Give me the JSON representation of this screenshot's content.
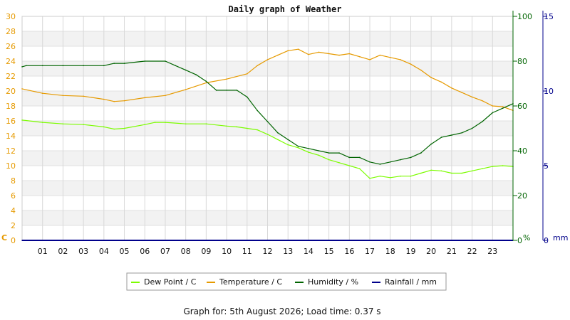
{
  "chart_data": {
    "type": "line",
    "title": "Daily graph of Weather",
    "footer": "Graph for: 5th August 2026; Load time: 0.37 s",
    "x_range": [
      0,
      24
    ],
    "x_ticks": [
      "01",
      "02",
      "03",
      "04",
      "05",
      "06",
      "07",
      "08",
      "09",
      "10",
      "11",
      "12",
      "13",
      "14",
      "15",
      "16",
      "17",
      "18",
      "19",
      "20",
      "21",
      "22",
      "23"
    ],
    "grid": true,
    "legend_position": "bottom",
    "axes": {
      "left": {
        "unit": "C",
        "min": 0,
        "max": 30,
        "step": 2,
        "color": "#e69a00"
      },
      "right1": {
        "unit": "%",
        "min": 0,
        "max": 100,
        "labels": [
          0,
          20,
          40,
          60,
          80,
          100
        ],
        "color": "#006400"
      },
      "right2": {
        "unit": "mm",
        "min": 0,
        "max": 15,
        "labels": [
          0,
          5,
          10,
          15
        ],
        "color": "#00008b"
      }
    },
    "series": [
      {
        "name": "Dew Point / C",
        "axis": "left",
        "color": "#7cfc00",
        "x": [
          0,
          1,
          2,
          3,
          4,
          4.5,
          5,
          6,
          6.5,
          7,
          8,
          9,
          10,
          10.5,
          11,
          11.5,
          12,
          12.5,
          13,
          13.5,
          14,
          14.5,
          15,
          15.5,
          16,
          16.5,
          17,
          17.5,
          18,
          18.5,
          19,
          19.5,
          20,
          20.5,
          21,
          21.5,
          22,
          22.5,
          23,
          23.5,
          24
        ],
        "values": [
          16.1,
          15.8,
          15.6,
          15.5,
          15.2,
          14.9,
          15.0,
          15.5,
          15.8,
          15.8,
          15.6,
          15.6,
          15.3,
          15.2,
          15.0,
          14.8,
          14.2,
          13.5,
          12.8,
          12.4,
          11.8,
          11.4,
          10.8,
          10.4,
          10.0,
          9.6,
          8.3,
          8.6,
          8.4,
          8.6,
          8.6,
          9.0,
          9.4,
          9.3,
          9.0,
          9.0,
          9.3,
          9.6,
          9.9,
          10.0,
          9.9
        ]
      },
      {
        "name": "Temperature / C",
        "axis": "left",
        "color": "#e69a00",
        "x": [
          0,
          1,
          2,
          3,
          4,
          4.5,
          5,
          6,
          7,
          8,
          9,
          10,
          11,
          11.5,
          12,
          12.5,
          13,
          13.5,
          14,
          14.5,
          15,
          15.5,
          16,
          16.5,
          17,
          17.5,
          18,
          18.5,
          19,
          19.5,
          20,
          20.5,
          21,
          21.5,
          22,
          22.5,
          23,
          23.5,
          24
        ],
        "values": [
          20.3,
          19.7,
          19.4,
          19.3,
          18.9,
          18.6,
          18.7,
          19.1,
          19.4,
          20.2,
          21.1,
          21.6,
          22.3,
          23.4,
          24.2,
          24.8,
          25.4,
          25.6,
          24.9,
          25.2,
          25.0,
          24.8,
          25.0,
          24.6,
          24.2,
          24.8,
          24.5,
          24.2,
          23.6,
          22.8,
          21.8,
          21.2,
          20.4,
          19.8,
          19.2,
          18.7,
          18.0,
          17.9,
          17.4
        ]
      },
      {
        "name": "Humidity / %",
        "axis": "right1",
        "color": "#006400",
        "x": [
          0,
          0.2,
          1,
          2,
          3,
          4,
          4.5,
          5,
          6,
          7,
          7.5,
          8,
          8.5,
          9,
          9.5,
          10,
          10.5,
          11,
          11.5,
          12,
          12.5,
          13,
          13.5,
          14,
          14.5,
          15,
          15.5,
          16,
          16.5,
          17,
          17.5,
          18,
          18.5,
          19,
          19.5,
          20,
          20.5,
          21,
          21.5,
          22,
          22.5,
          23,
          23.5,
          24
        ],
        "values": [
          77.5,
          78,
          78,
          78,
          78,
          78,
          79,
          79,
          80,
          80,
          78,
          76,
          74,
          71,
          67,
          67,
          67,
          64,
          58,
          53,
          48,
          45,
          42,
          41,
          40,
          39,
          39,
          37,
          37,
          35,
          34,
          35,
          36,
          37,
          39,
          43,
          46,
          47,
          48,
          50,
          53,
          57,
          59,
          61
        ]
      },
      {
        "name": "Rainfall / mm",
        "axis": "right2",
        "color": "#00008b",
        "x": [
          0,
          24
        ],
        "values": [
          0,
          0
        ]
      }
    ]
  }
}
